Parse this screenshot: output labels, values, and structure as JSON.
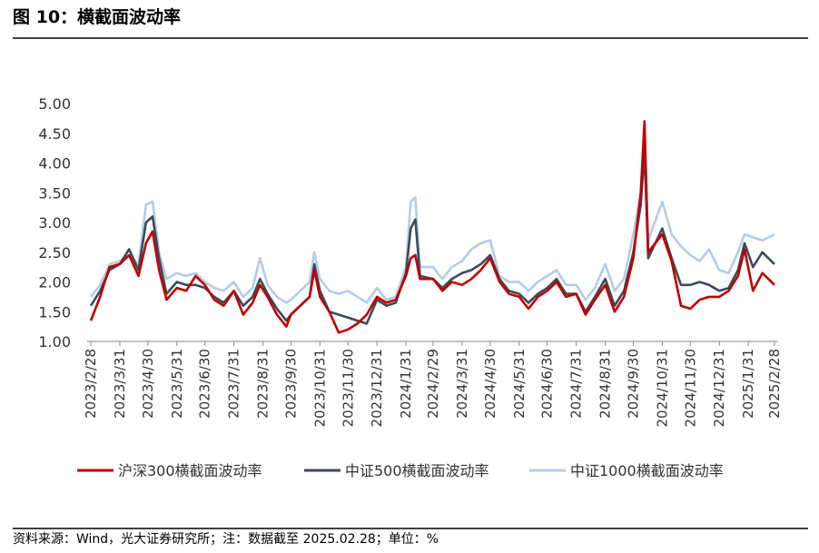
{
  "chart_data": {
    "type": "line",
    "title": "图 10：横截面波动率",
    "source": "资料来源：Wind，光大证券研究所；注：数据截至 2025.02.28；单位：%",
    "x": [
      "2023/2/28",
      "2023/3/10",
      "2023/3/20",
      "2023/3/31",
      "2023/4/10",
      "2023/4/20",
      "2023/4/28",
      "2023/5/5",
      "2023/5/12",
      "2023/5/20",
      "2023/5/31",
      "2023/6/10",
      "2023/6/20",
      "2023/6/30",
      "2023/7/10",
      "2023/7/20",
      "2023/7/31",
      "2023/8/10",
      "2023/8/20",
      "2023/8/28",
      "2023/9/5",
      "2023/9/15",
      "2023/9/25",
      "2023/9/30",
      "2023/10/10",
      "2023/10/20",
      "2023/10/25",
      "2023/10/31",
      "2023/11/10",
      "2023/11/20",
      "2023/11/30",
      "2023/12/10",
      "2023/12/20",
      "2023/12/31",
      "2024/1/10",
      "2024/1/20",
      "2024/1/31",
      "2024/2/5",
      "2024/2/10",
      "2024/2/15",
      "2024/2/29",
      "2024/3/10",
      "2024/3/20",
      "2024/3/31",
      "2024/4/10",
      "2024/4/20",
      "2024/4/30",
      "2024/5/10",
      "2024/5/20",
      "2024/5/31",
      "2024/6/10",
      "2024/6/20",
      "2024/6/30",
      "2024/7/10",
      "2024/7/20",
      "2024/7/31",
      "2024/8/10",
      "2024/8/20",
      "2024/8/31",
      "2024/9/10",
      "2024/9/20",
      "2024/9/30",
      "2024/10/8",
      "2024/10/12",
      "2024/10/16",
      "2024/10/31",
      "2024/11/10",
      "2024/11/20",
      "2024/11/30",
      "2024/12/10",
      "2024/12/20",
      "2024/12/31",
      "2025/1/10",
      "2025/1/20",
      "2025/1/27",
      "2025/2/5",
      "2025/2/15",
      "2025/2/28"
    ],
    "series": [
      {
        "name": "沪深300横截面波动率",
        "color": "#c00000",
        "values": [
          1.35,
          1.75,
          2.25,
          2.3,
          2.45,
          2.1,
          2.65,
          2.85,
          2.2,
          1.7,
          1.9,
          1.85,
          2.1,
          1.95,
          1.7,
          1.6,
          1.85,
          1.45,
          1.65,
          1.95,
          1.75,
          1.45,
          1.25,
          1.45,
          1.6,
          1.75,
          2.2,
          1.75,
          1.5,
          1.15,
          1.2,
          1.3,
          1.45,
          1.75,
          1.65,
          1.7,
          2.1,
          2.4,
          2.45,
          2.05,
          2.05,
          1.85,
          2.0,
          1.95,
          2.05,
          2.2,
          2.4,
          2.0,
          1.8,
          1.75,
          1.55,
          1.75,
          1.85,
          2.0,
          1.75,
          1.8,
          1.45,
          1.7,
          1.95,
          1.5,
          1.75,
          2.4,
          3.5,
          4.7,
          2.5,
          2.8,
          2.35,
          1.6,
          1.55,
          1.7,
          1.75,
          1.75,
          1.85,
          2.1,
          2.55,
          1.85,
          2.15,
          1.95
        ]
      },
      {
        "name": "中证500横截面波动率",
        "color": "#3d4a5c",
        "values": [
          1.6,
          1.85,
          2.2,
          2.3,
          2.55,
          2.2,
          3.0,
          3.1,
          2.4,
          1.8,
          2.0,
          1.95,
          1.95,
          1.9,
          1.75,
          1.65,
          1.85,
          1.6,
          1.75,
          2.05,
          1.8,
          1.55,
          1.35,
          1.45,
          1.6,
          1.75,
          2.3,
          1.85,
          1.5,
          1.45,
          1.4,
          1.35,
          1.3,
          1.7,
          1.6,
          1.65,
          2.15,
          2.9,
          3.05,
          2.1,
          2.05,
          1.9,
          2.05,
          2.15,
          2.2,
          2.3,
          2.45,
          2.05,
          1.85,
          1.8,
          1.65,
          1.8,
          1.9,
          2.05,
          1.8,
          1.8,
          1.5,
          1.75,
          2.05,
          1.6,
          1.85,
          2.5,
          3.3,
          4.2,
          2.4,
          2.9,
          2.4,
          1.95,
          1.95,
          2.0,
          1.95,
          1.85,
          1.9,
          2.2,
          2.65,
          2.25,
          2.5,
          2.3
        ]
      },
      {
        "name": "中证1000横截面波动率",
        "color": "#b4cce6",
        "values": [
          1.75,
          1.95,
          2.3,
          2.35,
          2.45,
          2.3,
          3.3,
          3.35,
          2.5,
          2.05,
          2.15,
          2.1,
          2.15,
          2.0,
          1.9,
          1.85,
          2.0,
          1.75,
          1.9,
          2.4,
          1.95,
          1.75,
          1.65,
          1.7,
          1.85,
          2.0,
          2.5,
          2.05,
          1.85,
          1.8,
          1.85,
          1.75,
          1.65,
          1.9,
          1.7,
          1.75,
          2.25,
          3.35,
          3.42,
          2.25,
          2.25,
          2.05,
          2.25,
          2.35,
          2.55,
          2.65,
          2.7,
          2.1,
          2.0,
          2.0,
          1.85,
          2.0,
          2.1,
          2.2,
          1.95,
          1.95,
          1.7,
          1.9,
          2.3,
          1.85,
          2.05,
          2.8,
          3.5,
          4.35,
          2.7,
          3.35,
          2.8,
          2.6,
          2.45,
          2.35,
          2.55,
          2.2,
          2.15,
          2.5,
          2.8,
          2.75,
          2.7,
          2.8
        ]
      }
    ],
    "xlim": [
      "2023/2/28",
      "2025/2/28"
    ],
    "xticks": [
      "2023/2/28",
      "2023/3/31",
      "2023/4/30",
      "2023/5/31",
      "2023/6/30",
      "2023/7/31",
      "2023/8/31",
      "2023/9/30",
      "2023/10/31",
      "2023/11/30",
      "2023/12/31",
      "2024/1/31",
      "2024/2/29",
      "2024/3/31",
      "2024/4/30",
      "2024/5/31",
      "2024/6/30",
      "2024/7/31",
      "2024/8/31",
      "2024/9/30",
      "2024/10/31",
      "2024/11/30",
      "2024/12/31",
      "2025/1/31",
      "2025/2/28"
    ],
    "ylim": [
      1,
      5
    ],
    "yticks": [
      {
        "value": 1,
        "label": "1.00"
      },
      {
        "value": 1.5,
        "label": "1.50"
      },
      {
        "value": 2,
        "label": "2.00"
      },
      {
        "value": 2.5,
        "label": "2.50"
      },
      {
        "value": 3,
        "label": "3.00"
      },
      {
        "value": 3.5,
        "label": "3.50"
      },
      {
        "value": 4,
        "label": "4.00"
      },
      {
        "value": 4.5,
        "label": "4.50"
      },
      {
        "value": 5,
        "label": "5.00"
      }
    ],
    "grid": false
  }
}
